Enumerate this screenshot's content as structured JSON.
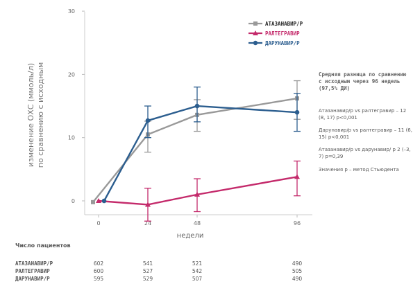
{
  "chart_data": {
    "type": "line",
    "ylabel": "изменение ОХС (ммоль/л)",
    "ylabel2": "по сравнению с исходным",
    "xlabel": "недели",
    "ylim": [
      -2,
      30
    ],
    "yticks": [
      0,
      10,
      20,
      30
    ],
    "x": [
      0,
      24,
      48,
      96
    ],
    "series": [
      {
        "name": "АТАЗАНАВИР/Р",
        "color": "#999999",
        "marker": "square",
        "y": [
          -0.2,
          10.5,
          13.6,
          16.2
        ],
        "err_low": [
          null,
          7.7,
          11.0,
          12.9
        ],
        "err_high": [
          null,
          12.6,
          16.0,
          19.0
        ]
      },
      {
        "name": "РАЛТЕГРАВИР",
        "color": "#c42a6b",
        "marker": "triangle",
        "y": [
          0,
          -0.6,
          1.0,
          3.8
        ],
        "err_low": [
          null,
          -3.2,
          -1.7,
          0.8
        ],
        "err_high": [
          null,
          2.0,
          3.5,
          6.3
        ]
      },
      {
        "name": "ДАРУНАВИР/Р",
        "color": "#2c5e8f",
        "marker": "circle",
        "y": [
          0,
          12.7,
          15.0,
          14.0
        ],
        "err_low": [
          null,
          10.0,
          12.5,
          11.0
        ],
        "err_high": [
          null,
          15.0,
          18.0,
          17.0
        ]
      }
    ],
    "legend_position": "top-right",
    "grid": false
  },
  "notes": {
    "title": "Средняя разница по сравнению с исходным через 96 недель (97,5% ДИ)",
    "p1": "Атазанавир/р vs ралтегравир – 12 (8, 17) p<0,001",
    "p2": "Дарунавир/р vs ралтегравир – 11 (6, 15) p<0,001",
    "p3": "Атазанавир/р vs дарунавир/ р 2 (–3, 7) p=0,39",
    "p4": "Значения p – метод Стьюдента"
  },
  "patients": {
    "title": "Число пациентов",
    "rows": [
      {
        "name": "АТАЗАНАВИР/Р",
        "values": [
          "602",
          "541",
          "521",
          "490"
        ]
      },
      {
        "name": "РАЛТЕГРАВИР",
        "values": [
          "600",
          "527",
          "542",
          "505"
        ]
      },
      {
        "name": "ДАРУНАВИР/Р",
        "values": [
          "595",
          "529",
          "507",
          "490"
        ]
      }
    ]
  }
}
